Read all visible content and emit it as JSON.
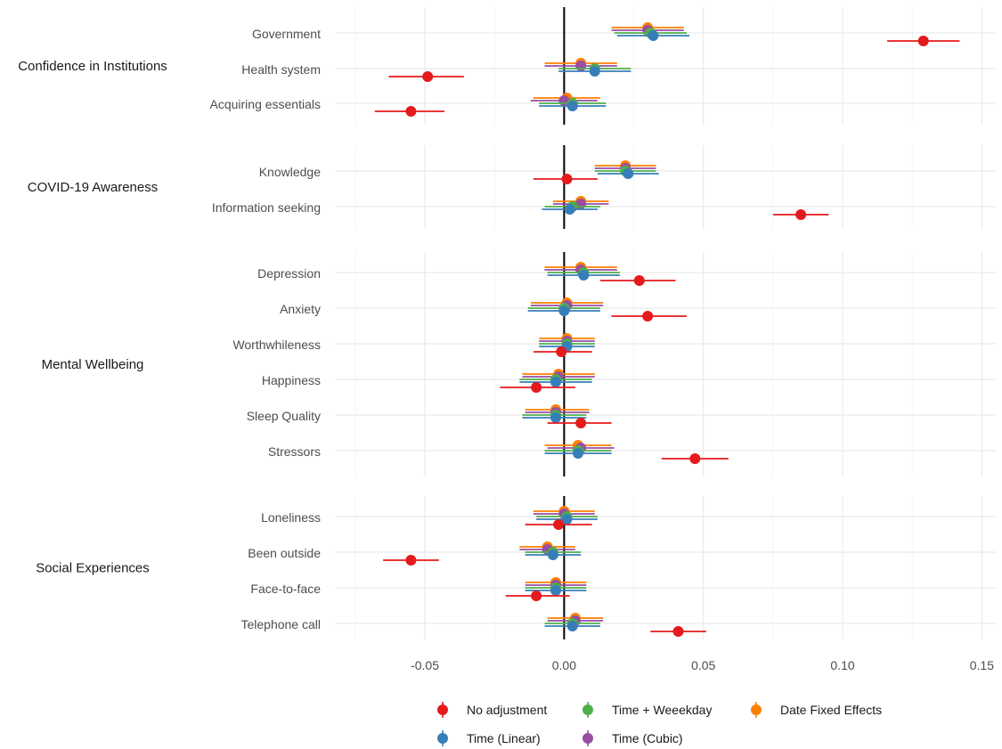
{
  "chart_data": {
    "type": "forest",
    "xlim": [
      -0.082,
      0.155
    ],
    "x_ticks": [
      -0.05,
      0.0,
      0.05,
      0.1,
      0.15
    ],
    "x_tick_labels": [
      "-0.05",
      "0.00",
      "0.05",
      "0.10",
      "0.15"
    ],
    "reference_line": 0,
    "grid": true,
    "legend_position": "bottom",
    "series": [
      {
        "name": "No adjustment",
        "color": "#e41a1c"
      },
      {
        "name": "Time (Linear)",
        "color": "#377eb8"
      },
      {
        "name": "Time + Weeekday",
        "color": "#4daf4a"
      },
      {
        "name": "Time (Cubic)",
        "color": "#984ea3"
      },
      {
        "name": "Date Fixed Effects",
        "color": "#ff7f00"
      }
    ],
    "legend_order": [
      "No adjustment",
      "Time + Weeekday",
      "Date Fixed Effects",
      "Time (Linear)",
      "Time (Cubic)"
    ],
    "panels": [
      {
        "group": "Confidence in Institutions",
        "rows": [
          {
            "label": "Government",
            "estimates": [
              [
                0.129,
                0.116,
                0.142
              ],
              [
                0.032,
                0.019,
                0.045
              ],
              [
                0.031,
                0.018,
                0.044
              ],
              [
                0.03,
                0.017,
                0.043
              ],
              [
                0.03,
                0.017,
                0.043
              ]
            ]
          },
          {
            "label": "Health system",
            "estimates": [
              [
                -0.049,
                -0.063,
                -0.036
              ],
              [
                0.011,
                -0.002,
                0.024
              ],
              [
                0.011,
                -0.002,
                0.024
              ],
              [
                0.006,
                -0.007,
                0.019
              ],
              [
                0.006,
                -0.007,
                0.019
              ]
            ]
          },
          {
            "label": "Acquiring essentials",
            "estimates": [
              [
                -0.055,
                -0.068,
                -0.043
              ],
              [
                0.003,
                -0.009,
                0.015
              ],
              [
                0.003,
                -0.009,
                0.015
              ],
              [
                0.0,
                -0.012,
                0.012
              ],
              [
                0.001,
                -0.011,
                0.013
              ]
            ]
          }
        ]
      },
      {
        "group": "COVID-19 Awareness",
        "rows": [
          {
            "label": "Knowledge",
            "estimates": [
              [
                0.001,
                -0.011,
                0.012
              ],
              [
                0.023,
                0.012,
                0.034
              ],
              [
                0.022,
                0.011,
                0.033
              ],
              [
                0.022,
                0.011,
                0.033
              ],
              [
                0.022,
                0.011,
                0.033
              ]
            ]
          },
          {
            "label": "Information seeking",
            "estimates": [
              [
                0.085,
                0.075,
                0.095
              ],
              [
                0.002,
                -0.008,
                0.012
              ],
              [
                0.003,
                -0.007,
                0.013
              ],
              [
                0.006,
                -0.004,
                0.016
              ],
              [
                0.006,
                -0.004,
                0.016
              ]
            ]
          }
        ]
      },
      {
        "group": "Mental Wellbeing",
        "rows": [
          {
            "label": "Depression",
            "estimates": [
              [
                0.027,
                0.013,
                0.04
              ],
              [
                0.007,
                -0.006,
                0.02
              ],
              [
                0.007,
                -0.006,
                0.02
              ],
              [
                0.006,
                -0.007,
                0.019
              ],
              [
                0.006,
                -0.007,
                0.019
              ]
            ]
          },
          {
            "label": "Anxiety",
            "estimates": [
              [
                0.03,
                0.017,
                0.044
              ],
              [
                0.0,
                -0.013,
                0.013
              ],
              [
                0.0,
                -0.013,
                0.013
              ],
              [
                0.001,
                -0.012,
                0.014
              ],
              [
                0.001,
                -0.012,
                0.014
              ]
            ]
          },
          {
            "label": "Worthwhileness",
            "estimates": [
              [
                -0.001,
                -0.011,
                0.01
              ],
              [
                0.001,
                -0.009,
                0.011
              ],
              [
                0.001,
                -0.009,
                0.011
              ],
              [
                0.001,
                -0.009,
                0.011
              ],
              [
                0.001,
                -0.009,
                0.011
              ]
            ]
          },
          {
            "label": "Happiness",
            "estimates": [
              [
                -0.01,
                -0.023,
                0.004
              ],
              [
                -0.003,
                -0.016,
                0.01
              ],
              [
                -0.003,
                -0.016,
                0.01
              ],
              [
                -0.002,
                -0.015,
                0.011
              ],
              [
                -0.002,
                -0.015,
                0.011
              ]
            ]
          },
          {
            "label": "Sleep Quality",
            "estimates": [
              [
                0.006,
                -0.006,
                0.017
              ],
              [
                -0.003,
                -0.015,
                0.008
              ],
              [
                -0.003,
                -0.015,
                0.008
              ],
              [
                -0.003,
                -0.014,
                0.009
              ],
              [
                -0.003,
                -0.014,
                0.009
              ]
            ]
          },
          {
            "label": "Stressors",
            "estimates": [
              [
                0.047,
                0.035,
                0.059
              ],
              [
                0.005,
                -0.007,
                0.017
              ],
              [
                0.005,
                -0.007,
                0.017
              ],
              [
                0.006,
                -0.006,
                0.018
              ],
              [
                0.005,
                -0.007,
                0.017
              ]
            ]
          }
        ]
      },
      {
        "group": "Social Experiences",
        "rows": [
          {
            "label": "Loneliness",
            "estimates": [
              [
                -0.002,
                -0.014,
                0.01
              ],
              [
                0.001,
                -0.01,
                0.012
              ],
              [
                0.001,
                -0.01,
                0.012
              ],
              [
                0.0,
                -0.011,
                0.011
              ],
              [
                0.0,
                -0.011,
                0.011
              ]
            ]
          },
          {
            "label": "Been outside",
            "estimates": [
              [
                -0.055,
                -0.065,
                -0.045
              ],
              [
                -0.004,
                -0.014,
                0.006
              ],
              [
                -0.004,
                -0.014,
                0.006
              ],
              [
                -0.006,
                -0.016,
                0.004
              ],
              [
                -0.006,
                -0.016,
                0.004
              ]
            ]
          },
          {
            "label": "Face-to-face",
            "estimates": [
              [
                -0.01,
                -0.021,
                0.002
              ],
              [
                -0.003,
                -0.014,
                0.008
              ],
              [
                -0.003,
                -0.014,
                0.008
              ],
              [
                -0.003,
                -0.014,
                0.008
              ],
              [
                -0.003,
                -0.014,
                0.008
              ]
            ]
          },
          {
            "label": "Telephone call",
            "estimates": [
              [
                0.041,
                0.031,
                0.051
              ],
              [
                0.003,
                -0.007,
                0.013
              ],
              [
                0.003,
                -0.007,
                0.013
              ],
              [
                0.004,
                -0.006,
                0.014
              ],
              [
                0.004,
                -0.006,
                0.014
              ]
            ]
          }
        ]
      }
    ]
  }
}
